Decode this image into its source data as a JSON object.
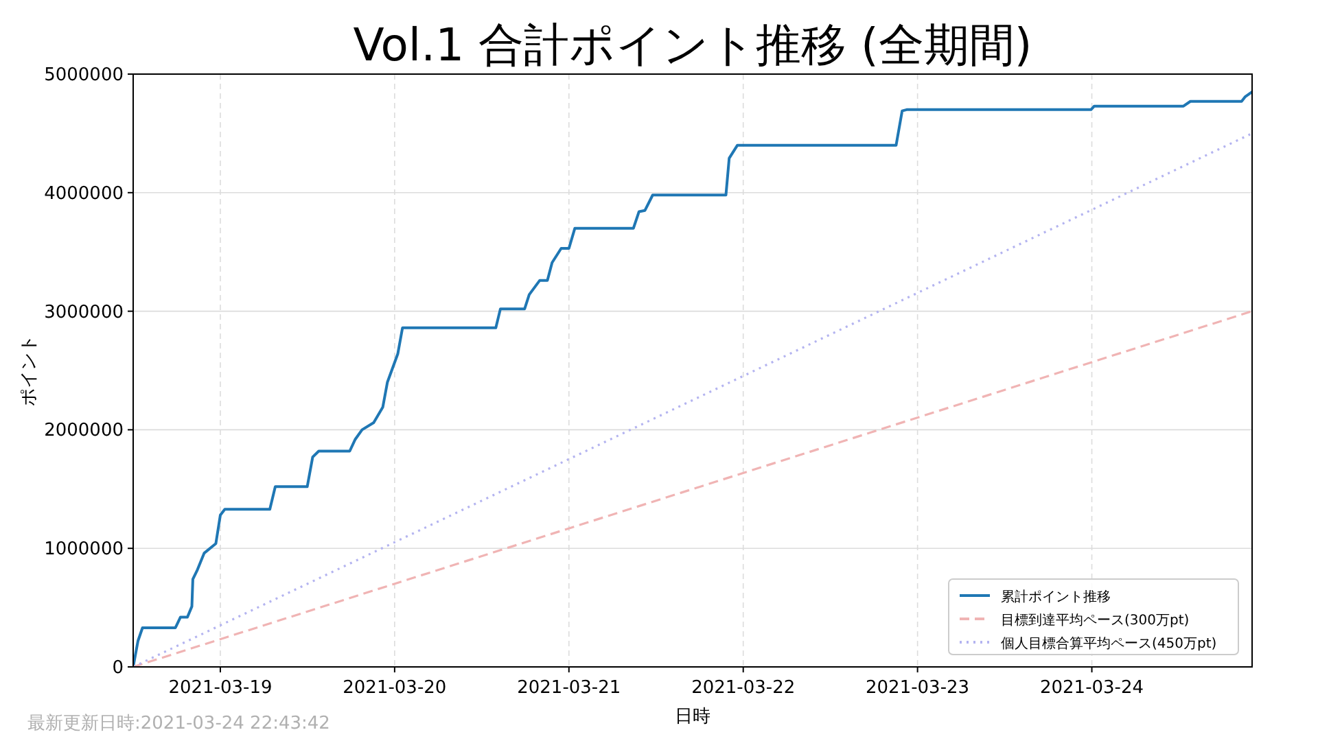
{
  "chart_data": {
    "type": "line",
    "title": "Vol.1 合計ポイント推移 (全期間)",
    "xlabel": "日時",
    "ylabel": "ポイント",
    "xlim": [
      "2021-03-18T12:00",
      "2021-03-24T22:04"
    ],
    "xticks": [
      "2021-03-19",
      "2021-03-20",
      "2021-03-21",
      "2021-03-22",
      "2021-03-23",
      "2021-03-24"
    ],
    "ylim": [
      0,
      5000000
    ],
    "yticks": [
      0,
      1000000,
      2000000,
      3000000,
      4000000,
      5000000
    ],
    "grid": true,
    "legend": "bottom right",
    "annotations": [
      "最新更新日時:2021-03-24 22:43:42"
    ],
    "series": [
      {
        "name": "累計ポイント推移",
        "color": "#1f77b4",
        "line_style": "solid",
        "x": [
          "2021-03-18T12:00",
          "2021-03-18T12:40",
          "2021-03-18T13:17",
          "2021-03-18T17:49",
          "2021-03-18T18:31",
          "2021-03-18T19:28",
          "2021-03-18T20:05",
          "2021-03-18T20:13",
          "2021-03-18T20:51",
          "2021-03-18T21:47",
          "2021-03-18T23:23",
          "2021-03-19T00:00",
          "2021-03-19T00:37",
          "2021-03-19T06:49",
          "2021-03-19T07:34",
          "2021-03-19T11:58",
          "2021-03-19T12:43",
          "2021-03-19T13:33",
          "2021-03-19T17:49",
          "2021-03-19T18:35",
          "2021-03-19T19:31",
          "2021-03-19T21:07",
          "2021-03-19T22:22",
          "2021-03-19T23:00",
          "2021-03-20T00:26",
          "2021-03-20T01:05",
          "2021-03-20T13:56",
          "2021-03-20T14:34",
          "2021-03-20T17:54",
          "2021-03-20T18:32",
          "2021-03-20T19:59",
          "2021-03-20T21:02",
          "2021-03-20T21:41",
          "2021-03-20T22:56",
          "2021-03-21T00:00",
          "2021-03-21T00:49",
          "2021-03-21T08:53",
          "2021-03-21T09:39",
          "2021-03-21T10:28",
          "2021-03-21T11:32",
          "2021-03-21T21:37",
          "2021-03-21T22:04",
          "2021-03-21T23:12",
          "2021-03-22T21:03",
          "2021-03-22T21:53",
          "2021-03-22T22:30",
          "2021-03-23T23:53",
          "2021-03-24T00:20",
          "2021-03-24T12:37",
          "2021-03-24T13:34",
          "2021-03-24T20:37",
          "2021-03-24T21:08",
          "2021-03-24T22:04"
        ],
        "values": [
          0,
          220000,
          330000,
          330000,
          420000,
          420000,
          510000,
          740000,
          820000,
          960000,
          1040000,
          1280000,
          1330000,
          1330000,
          1520000,
          1520000,
          1770000,
          1820000,
          1820000,
          1920000,
          2000000,
          2060000,
          2190000,
          2400000,
          2640000,
          2860000,
          2860000,
          3020000,
          3020000,
          3140000,
          3260000,
          3260000,
          3410000,
          3530000,
          3530000,
          3700000,
          3700000,
          3840000,
          3850000,
          3980000,
          3980000,
          4290000,
          4400000,
          4400000,
          4690000,
          4700000,
          4700000,
          4730000,
          4730000,
          4770000,
          4770000,
          4810000,
          4850000
        ]
      },
      {
        "name": "目標到達平均ペース(300万pt)",
        "color": "#f0b4b4",
        "line_style": "dashed",
        "x": [
          "2021-03-18T12:00",
          "2021-03-24T22:04"
        ],
        "values": [
          0,
          3000000
        ]
      },
      {
        "name": "個人目標合算平均ペース(450万pt)",
        "color": "#b4b4f0",
        "line_style": "dotted",
        "x": [
          "2021-03-18T12:00",
          "2021-03-24T22:04"
        ],
        "values": [
          0,
          4500000
        ]
      }
    ]
  }
}
